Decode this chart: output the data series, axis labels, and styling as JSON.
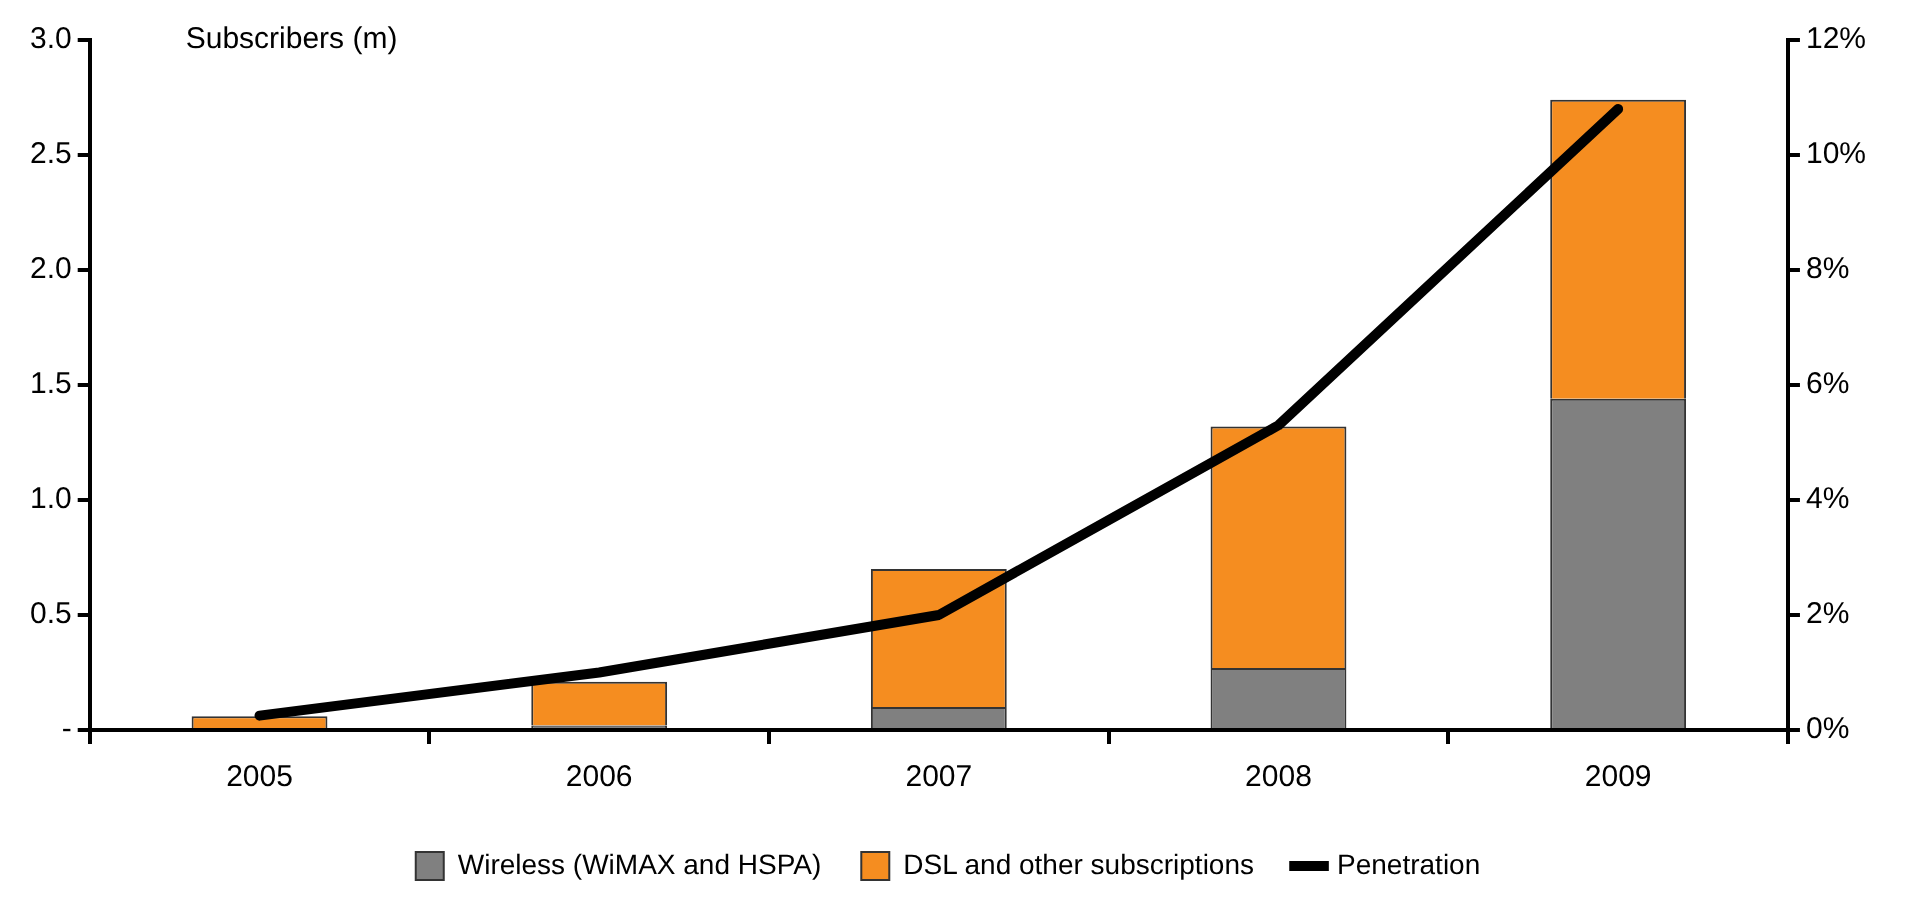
{
  "chart_data": {
    "type": "bar",
    "stacked": true,
    "ylabel": "Subscribers (m)",
    "categories": [
      "2005",
      "2006",
      "2007",
      "2008",
      "2009"
    ],
    "series": [
      {
        "name": "Wireless (WiMAX and HSPA)",
        "color": "#808080",
        "values": [
          0,
          0.02,
          0.1,
          0.27,
          1.44
        ]
      },
      {
        "name": "DSL and other subscriptions",
        "color": "#f58d20",
        "values": [
          0.06,
          0.19,
          0.6,
          1.05,
          1.3
        ]
      },
      {
        "name": "Penetration",
        "type": "line",
        "axis": "y2",
        "color": "#000000",
        "values": [
          0.25,
          1.0,
          2.0,
          5.3,
          10.8
        ]
      }
    ],
    "ylim": [
      0,
      3
    ],
    "yticks": [
      {
        "value": 0,
        "label": "-"
      },
      {
        "value": 0.5,
        "label": "0.5"
      },
      {
        "value": 1,
        "label": "1.0"
      },
      {
        "value": 1.5,
        "label": "1.5"
      },
      {
        "value": 2,
        "label": "2.0"
      },
      {
        "value": 2.5,
        "label": "2.5"
      },
      {
        "value": 3,
        "label": "3.0"
      }
    ],
    "y2lim": [
      0,
      12
    ],
    "y2ticks": [
      {
        "value": 0,
        "label": "0%"
      },
      {
        "value": 2,
        "label": "2%"
      },
      {
        "value": 4,
        "label": "4%"
      },
      {
        "value": 6,
        "label": "6%"
      },
      {
        "value": 8,
        "label": "8%"
      },
      {
        "value": 10,
        "label": "10%"
      },
      {
        "value": 12,
        "label": "12%"
      }
    ],
    "grid": false,
    "legend": "bottom",
    "marker": "none",
    "line_style": "solid"
  }
}
